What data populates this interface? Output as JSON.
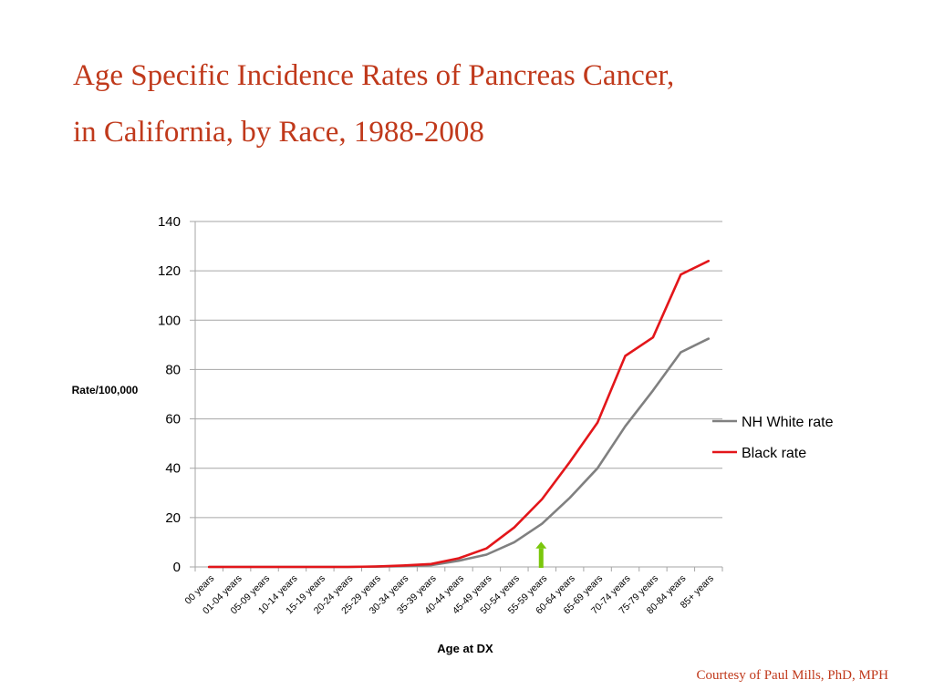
{
  "slide": {
    "title_line1": "Age Specific Incidence Rates of Pancreas Cancer,",
    "title_line2": "in California, by Race, 1988-2008",
    "credit": "Courtesy of Paul Mills, PhD, MPH"
  },
  "colors": {
    "title": "#c0391b",
    "credit": "#c0391b",
    "nh_white": "#808080",
    "black": "#e3161a",
    "marker_arrow": "#7ac70c",
    "grid": "#a6a6a6",
    "text": "#000000"
  },
  "chart_data": {
    "type": "line",
    "xlabel": "Age at DX",
    "ylabel": "Rate/100,000",
    "ylim": [
      0,
      140
    ],
    "yticks": [
      0,
      20,
      40,
      60,
      80,
      100,
      120,
      140
    ],
    "grid": true,
    "legend_position": "right",
    "categories": [
      "00 years",
      "01-04 years",
      "05-09 years",
      "10-14 years",
      "15-19 years",
      "20-24 years",
      "25-29 years",
      "30-34 years",
      "35-39 years",
      "40-44 years",
      "45-49 years",
      "50-54 years",
      "55-59 years",
      "60-64 years",
      "65-69 years",
      "70-74 years",
      "75-79 years",
      "80-84 years",
      "85+ years"
    ],
    "series": [
      {
        "name": "NH White rate",
        "color_key": "nh_white",
        "values": [
          0,
          0,
          0,
          0,
          0,
          0,
          0.1,
          0.3,
          0.7,
          2.5,
          5,
          10,
          17.5,
          28,
          40,
          57,
          71.5,
          87,
          92.5
        ]
      },
      {
        "name": "Black rate",
        "color_key": "black",
        "values": [
          0,
          0,
          0,
          0,
          0,
          0,
          0.2,
          0.6,
          1.2,
          3.5,
          7.5,
          16,
          27.5,
          42.5,
          58.5,
          85.5,
          93,
          118.5,
          124
        ]
      }
    ],
    "annotation": {
      "type": "arrow",
      "category": "55-59 years",
      "color_key": "marker_arrow"
    }
  }
}
